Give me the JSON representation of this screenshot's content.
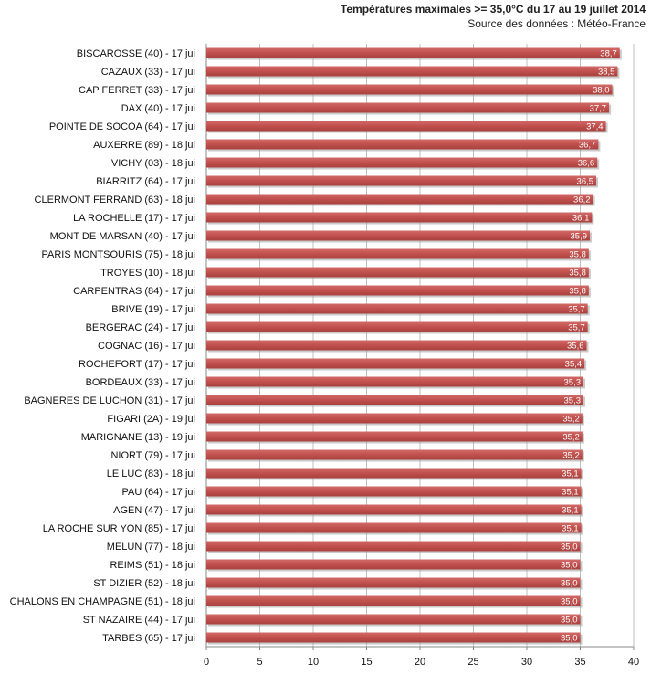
{
  "chart_data": {
    "type": "bar",
    "orientation": "horizontal",
    "title": "Températures maximales >= 35,0°C du 17 au 19 juillet 2014",
    "subtitle": "Source des données : Météo-France",
    "xlabel": "",
    "ylabel": "",
    "xlim": [
      0,
      40
    ],
    "xticks": [
      0,
      5,
      10,
      15,
      20,
      25,
      30,
      35,
      40
    ],
    "grid": true,
    "legend": "none",
    "bar_color": "#c0504d",
    "categories": [
      "BISCAROSSE (40) - 17 jui",
      "CAZAUX (33) - 17 jui",
      "CAP FERRET (33) - 17 jui",
      "DAX (40) - 17 jui",
      "POINTE DE SOCOA (64) - 17 jui",
      "AUXERRE (89) - 18 jui",
      "VICHY (03) - 18 jui",
      "BIARRITZ (64) - 17 jui",
      "CLERMONT FERRAND (63) - 18 jui",
      "LA ROCHELLE (17) - 17 jui",
      "MONT DE MARSAN (40) - 17 jui",
      "PARIS MONTSOURIS (75) - 18 jui",
      "TROYES (10) - 18 jui",
      "CARPENTRAS (84) - 17 jui",
      "BRIVE (19) - 17 jui",
      "BERGERAC (24) - 17 jui",
      "COGNAC (16) - 17 jui",
      "ROCHEFORT (17) - 17 jui",
      "BORDEAUX (33) - 17 jui",
      "BAGNERES DE LUCHON (31) - 17 jui",
      "FIGARI (2A) - 19 jui",
      "MARIGNANE (13) - 19 jui",
      "NIORT (79) - 17 jui",
      "LE LUC (83) - 18 jui",
      "PAU (64) - 17 jui",
      "AGEN (47) - 17 jui",
      "LA ROCHE SUR YON (85) - 17 jui",
      "MELUN (77) - 18 jui",
      "REIMS (51) - 18 jui",
      "ST DIZIER (52) - 18 jui",
      "CHALONS EN CHAMPAGNE (51) - 18 jui",
      "ST NAZAIRE (44) - 17 jui",
      "TARBES (65) - 17 jui"
    ],
    "values": [
      38.7,
      38.5,
      38.0,
      37.7,
      37.4,
      36.7,
      36.6,
      36.5,
      36.2,
      36.1,
      35.9,
      35.8,
      35.8,
      35.8,
      35.7,
      35.7,
      35.6,
      35.4,
      35.3,
      35.3,
      35.2,
      35.2,
      35.2,
      35.1,
      35.1,
      35.1,
      35.1,
      35.0,
      35.0,
      35.0,
      35.0,
      35.0,
      35.0
    ],
    "value_labels": [
      "38,7",
      "38,5",
      "38,0",
      "37,7",
      "37,4",
      "36,7",
      "36,6",
      "36,5",
      "36,2",
      "36,1",
      "35,9",
      "35,8",
      "35,8",
      "35,8",
      "35,7",
      "35,7",
      "35,6",
      "35,4",
      "35,3",
      "35,3",
      "35,2",
      "35,2",
      "35,2",
      "35,1",
      "35,1",
      "35,1",
      "35,1",
      "35,0",
      "35,0",
      "35,0",
      "35,0",
      "35,0",
      "35,0"
    ]
  }
}
